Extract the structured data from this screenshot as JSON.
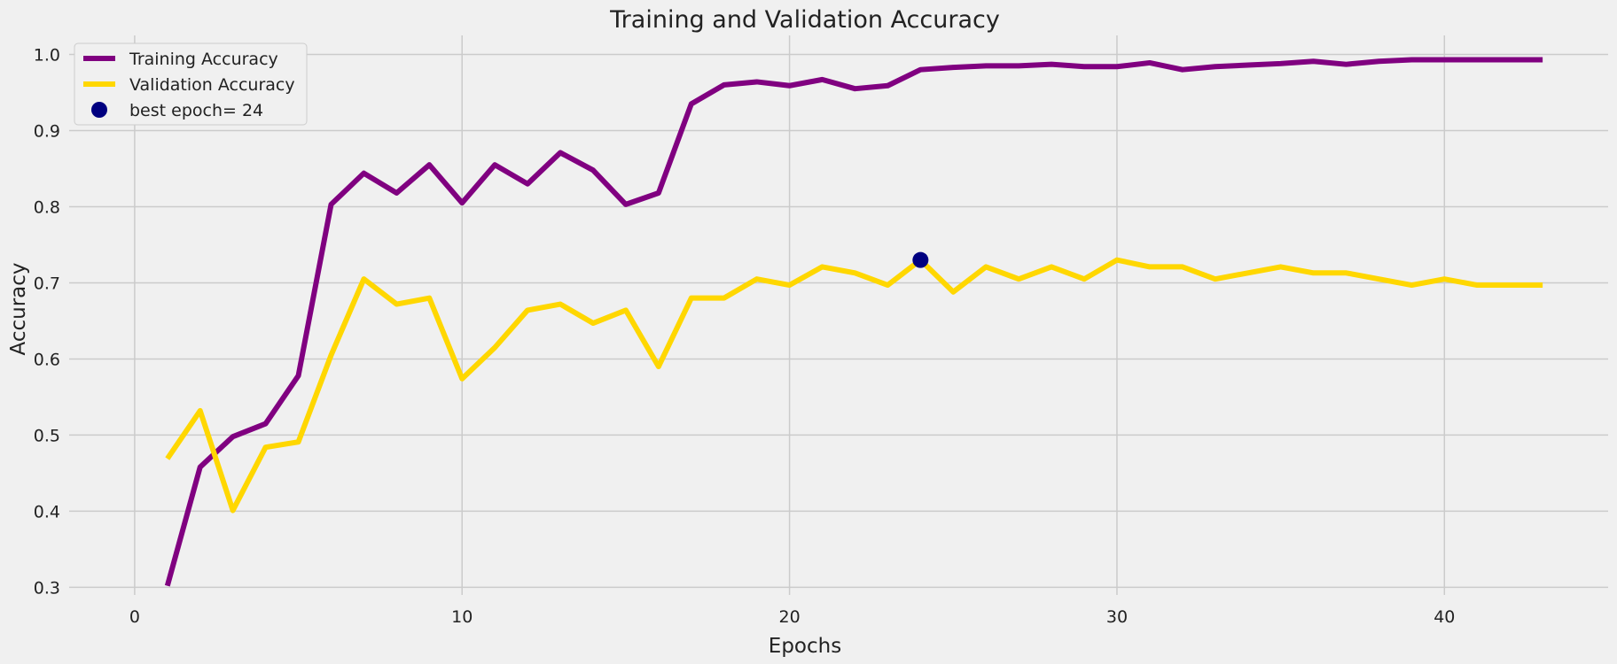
{
  "chart_data": {
    "type": "line",
    "title": "Training and Validation Accuracy",
    "xlabel": "Epochs",
    "ylabel": "Accuracy",
    "xlim": [
      -2,
      45
    ],
    "ylim": [
      0.29,
      1.025
    ],
    "x_ticks": [
      0,
      10,
      20,
      30,
      40
    ],
    "y_ticks": [
      0.3,
      0.4,
      0.5,
      0.6,
      0.7,
      0.8,
      0.9,
      1.0
    ],
    "x_tick_labels": [
      "0",
      "10",
      "20",
      "30",
      "40"
    ],
    "y_tick_labels": [
      "0.3",
      "0.4",
      "0.5",
      "0.6",
      "0.7",
      "0.8",
      "0.9",
      "1.0"
    ],
    "grid": true,
    "legend_position": "top-left",
    "x": [
      1,
      2,
      3,
      4,
      5,
      6,
      7,
      8,
      9,
      10,
      11,
      12,
      13,
      14,
      15,
      16,
      17,
      18,
      19,
      20,
      21,
      22,
      23,
      24,
      25,
      26,
      27,
      28,
      29,
      30,
      31,
      32,
      33,
      34,
      35,
      36,
      37,
      38,
      39,
      40,
      41,
      42,
      43
    ],
    "series": [
      {
        "name": "Training Accuracy",
        "color": "#800080",
        "values": [
          0.302,
          0.458,
          0.498,
          0.515,
          0.578,
          0.803,
          0.844,
          0.818,
          0.855,
          0.805,
          0.855,
          0.83,
          0.871,
          0.848,
          0.803,
          0.818,
          0.935,
          0.96,
          0.964,
          0.959,
          0.967,
          0.955,
          0.959,
          0.98,
          0.983,
          0.985,
          0.985,
          0.987,
          0.984,
          0.984,
          0.989,
          0.98,
          0.984,
          0.986,
          0.988,
          0.991,
          0.987,
          0.991,
          0.993,
          0.993,
          0.993,
          0.993,
          0.993
        ]
      },
      {
        "name": "Validation Accuracy",
        "color": "#ffd700",
        "values": [
          0.469,
          0.532,
          0.401,
          0.484,
          0.491,
          0.605,
          0.705,
          0.672,
          0.68,
          0.574,
          0.615,
          0.664,
          0.672,
          0.647,
          0.664,
          0.59,
          0.68,
          0.68,
          0.705,
          0.697,
          0.721,
          0.713,
          0.697,
          0.73,
          0.688,
          0.721,
          0.705,
          0.721,
          0.705,
          0.73,
          0.721,
          0.721,
          0.705,
          0.713,
          0.721,
          0.713,
          0.713,
          0.705,
          0.697,
          0.705,
          0.697,
          0.697,
          0.697
        ]
      }
    ],
    "highlight_point": {
      "label": "best epoch= 24",
      "x": 24,
      "y": 0.73,
      "color": "#000080"
    }
  }
}
